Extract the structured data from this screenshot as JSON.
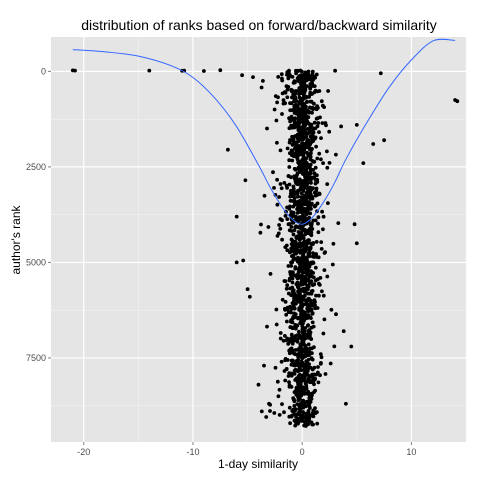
{
  "chart_data": {
    "type": "scatter",
    "title": "distribution of ranks based on forward/backward similarity",
    "xlabel": "1-day similarity",
    "ylabel": "author's rank",
    "xlim": [
      -23,
      15
    ],
    "ylim": [
      -900,
      9700
    ],
    "y_reversed": true,
    "grid": true,
    "x_ticks": [
      -20,
      -10,
      0,
      10
    ],
    "x_tick_labels": [
      "-20",
      "-10",
      "0",
      "10"
    ],
    "y_ticks": [
      0,
      2500,
      5000,
      7500
    ],
    "y_tick_labels": [
      "0",
      "2500",
      "5000",
      "7500"
    ],
    "colors": {
      "panel": "#e5e5e5",
      "grid": "#ffffff",
      "points": "#000000",
      "smooth": "#3366ff"
    },
    "points_summary": {
      "x_range": [
        -21,
        14
      ],
      "y_range": [
        -25,
        9290
      ],
      "dense_center_x": 0
    },
    "smooth_line": {
      "x": [
        -21,
        -18,
        -15,
        -12,
        -10,
        -8,
        -6,
        -4,
        -3,
        -2,
        -1,
        0,
        1,
        2,
        3,
        4,
        6,
        8,
        10,
        12,
        14
      ],
      "y": [
        -570,
        -510,
        -400,
        -150,
        160,
        700,
        1450,
        2450,
        3000,
        3480,
        3850,
        4000,
        3800,
        3400,
        2900,
        2300,
        1300,
        400,
        -300,
        -800,
        -810
      ]
    }
  }
}
